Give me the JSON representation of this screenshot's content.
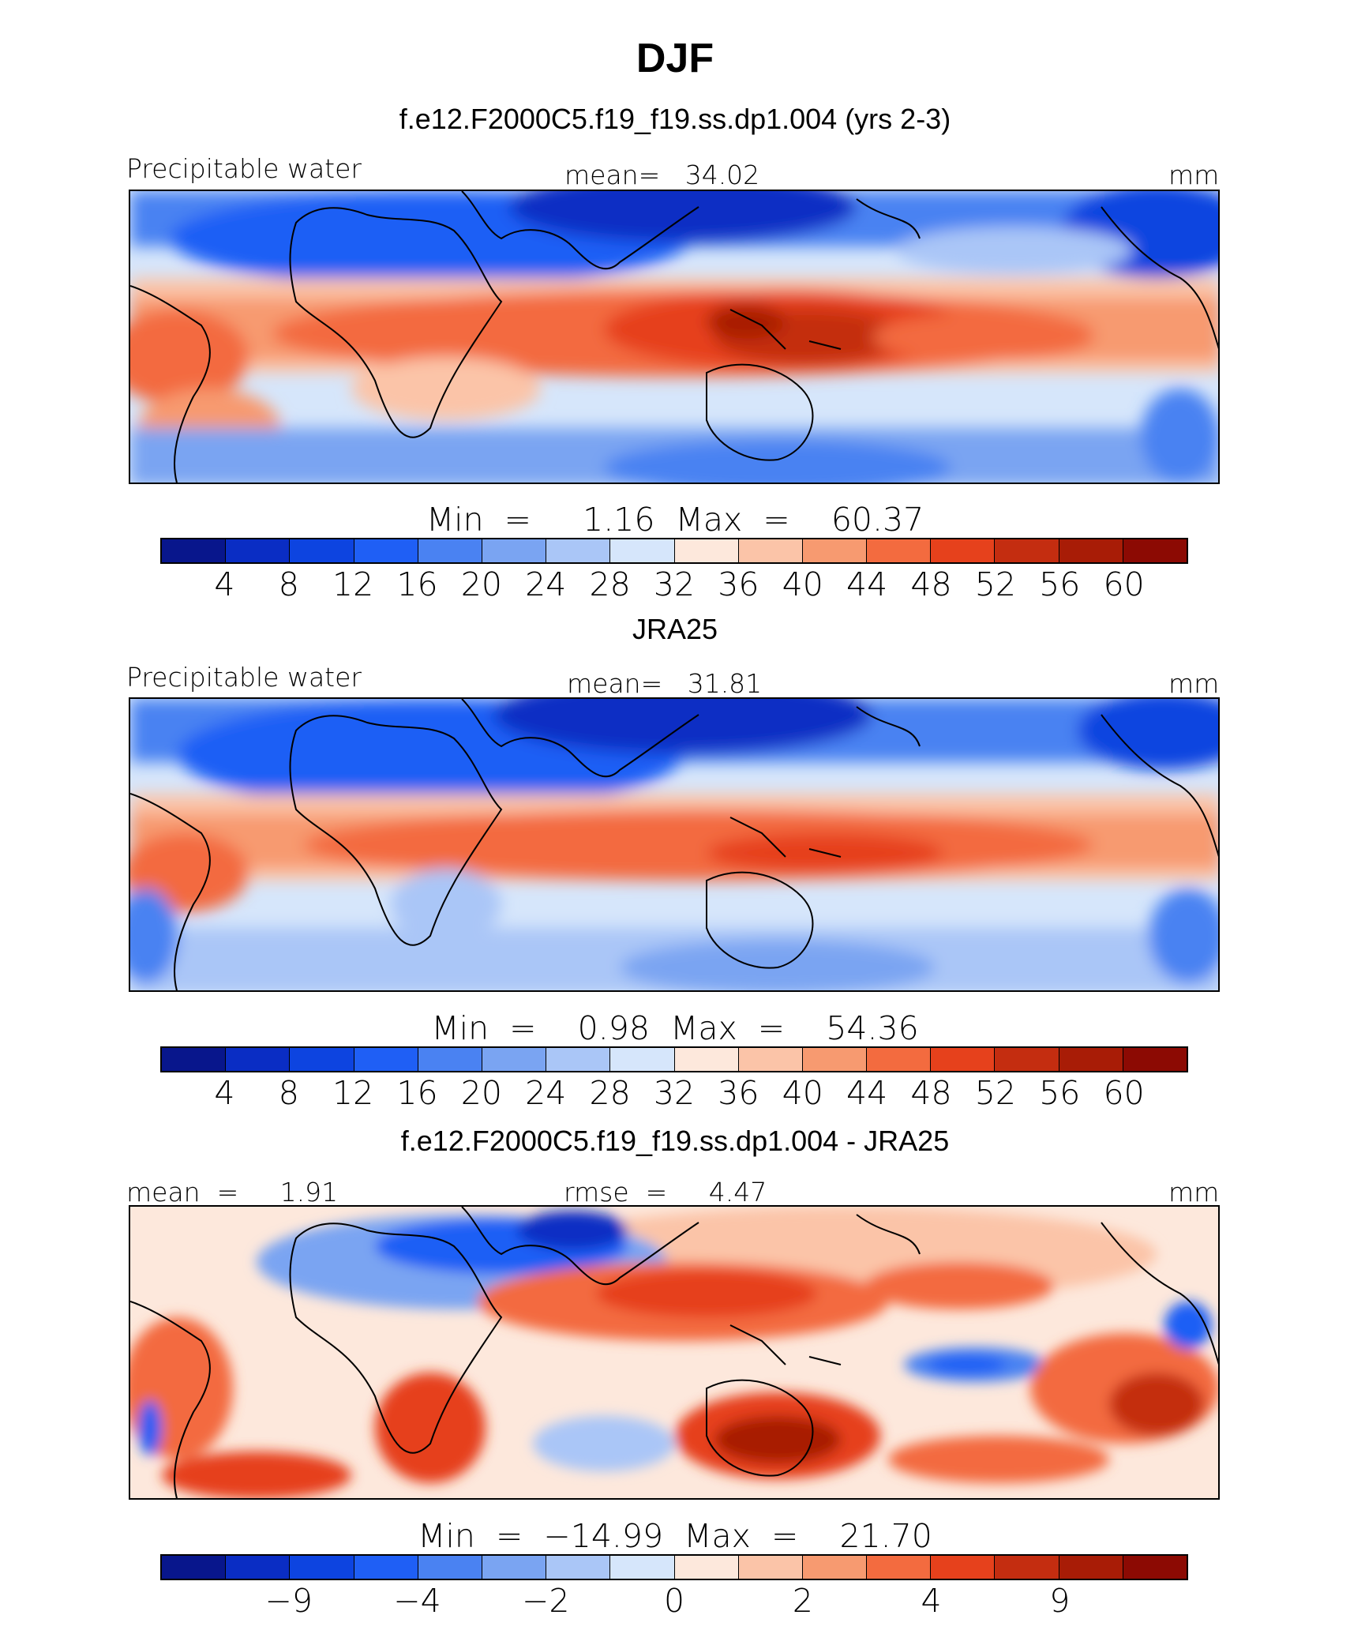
{
  "figure": {
    "title": "DJF"
  },
  "palette": [
    "#08168c",
    "#0a2dc4",
    "#0d44e0",
    "#1f5ff5",
    "#4a82f2",
    "#7aa4f2",
    "#aac6f7",
    "#d6e6fb",
    "#fde8dc",
    "#fbc4a8",
    "#f79a70",
    "#f36b3f",
    "#e6411c",
    "#c42d10",
    "#a81c06",
    "#8c0a03"
  ],
  "panels": [
    {
      "subtitle": "f.e12.F2000C5.f19_f19.ss.dp1.004 (yrs 2-3)",
      "left_label": "Precipitable water",
      "center_label": "mean=   34.02",
      "right_label": "mm",
      "minmax": "Min  =     1.16  Max  =    60.37",
      "colorbar_ticks": [
        "4",
        "8",
        "12",
        "16",
        "20",
        "24",
        "28",
        "32",
        "36",
        "40",
        "44",
        "48",
        "52",
        "56",
        "60"
      ]
    },
    {
      "subtitle": "JRA25",
      "left_label": "Precipitable water",
      "center_label": "mean=   31.81",
      "right_label": "mm",
      "minmax": "Min  =    0.98  Max  =    54.36",
      "colorbar_ticks": [
        "4",
        "8",
        "12",
        "16",
        "20",
        "24",
        "28",
        "32",
        "36",
        "40",
        "44",
        "48",
        "52",
        "56",
        "60"
      ]
    },
    {
      "subtitle": "f.e12.F2000C5.f19_f19.ss.dp1.004 - JRA25",
      "left_label": "mean  =     1.91",
      "center_label": "rmse  =     4.47",
      "right_label": "mm",
      "minmax": "Min  =  −14.99  Max  =    21.70",
      "colorbar_ticks": [
        "−9",
        "−4",
        "−2",
        "0",
        "2",
        "4",
        "9"
      ]
    }
  ]
}
